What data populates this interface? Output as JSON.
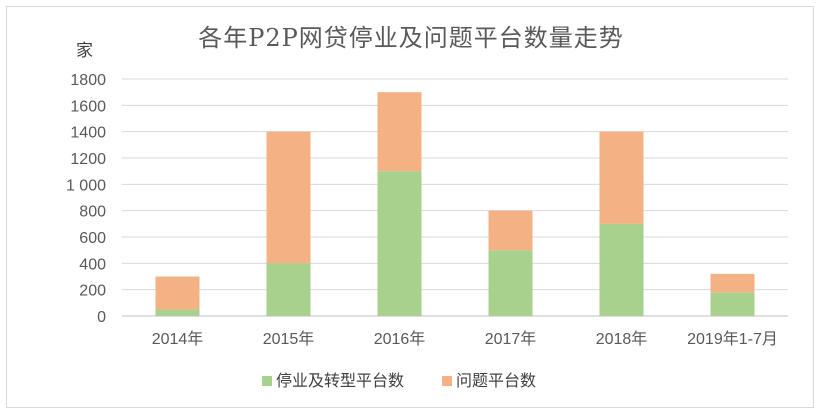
{
  "chart_data": {
    "type": "bar",
    "stacked": true,
    "title": "各年P2P网贷停业及问题平台数量走势",
    "ylabel": "家",
    "xlabel": "",
    "categories": [
      "2014年",
      "2015年",
      "2016年",
      "2017年",
      "2018年",
      "2019年1-7月"
    ],
    "series": [
      {
        "name": "停业及转型平台数",
        "color": "#a9d18e",
        "values": [
          50,
          400,
          1100,
          500,
          700,
          180
        ]
      },
      {
        "name": "问题平台数",
        "color": "#f4b183",
        "values": [
          250,
          1000,
          600,
          300,
          700,
          140
        ]
      }
    ],
    "ylim": [
      0,
      1800
    ],
    "yticks": [
      0,
      200,
      400,
      600,
      800,
      "1000",
      "1200",
      "1400",
      "1600",
      "1800"
    ],
    "ytick_labels": [
      "0",
      "200",
      "400",
      "600",
      "800",
      "1 000",
      "1200",
      "1400",
      "1600",
      "1800"
    ],
    "grid": true,
    "legend_position": "bottom"
  }
}
